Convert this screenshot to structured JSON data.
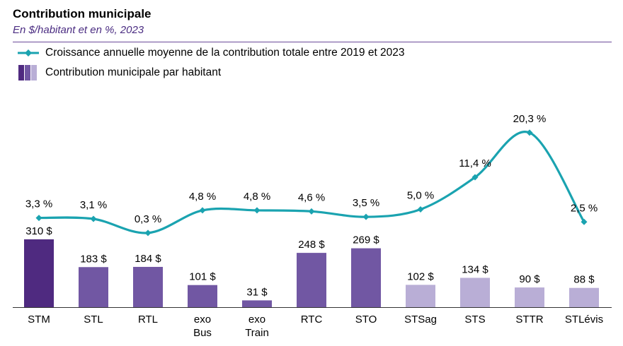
{
  "header": {
    "title": "Contribution municipale",
    "subtitle": "En $/habitant et en %, 2023"
  },
  "legend": {
    "line_label": "Croissance annuelle moyenne de la contribution totale entre 2019 et 2023",
    "bar_label": "Contribution municipale par habitant"
  },
  "colors": {
    "line": "#1aa3b0",
    "bar_dark": "#4f2a80",
    "bar_medium": "#7157a3",
    "bar_light": "#b9aed6",
    "rule": "#6b4a9a"
  },
  "chart_data": {
    "type": "bar",
    "title": "Contribution municipale",
    "subtitle": "En $/habitant et en %, 2023",
    "categories": [
      [
        "STM"
      ],
      [
        "STL"
      ],
      [
        "RTL"
      ],
      [
        "exo",
        "Bus"
      ],
      [
        "exo",
        "Train"
      ],
      [
        "RTC"
      ],
      [
        "STO"
      ],
      [
        "STSag"
      ],
      [
        "STS"
      ],
      [
        "STTR"
      ],
      [
        "STLévis"
      ]
    ],
    "series": [
      {
        "name": "Contribution municipale par habitant",
        "kind": "bar",
        "values": [
          310,
          183,
          184,
          101,
          31,
          248,
          269,
          102,
          134,
          90,
          88
        ],
        "labels": [
          "310 $",
          "183 $",
          "184 $",
          "101 $",
          "31 $",
          "248 $",
          "269 $",
          "102 $",
          "134 $",
          "90 $",
          "88 $"
        ],
        "shades": [
          "dark",
          "medium",
          "medium",
          "medium",
          "medium",
          "medium",
          "medium",
          "light",
          "light",
          "light",
          "light"
        ]
      },
      {
        "name": "Croissance annuelle moyenne de la contribution totale entre 2019 et 2023",
        "kind": "line",
        "values": [
          3.3,
          3.1,
          0.3,
          4.8,
          4.8,
          4.6,
          3.5,
          5.0,
          11.4,
          20.3,
          2.5
        ],
        "labels": [
          "3,3 %",
          "3,1 %",
          "0,3 %",
          "4,8 %",
          "4,8 %",
          "4,6 %",
          "3,5 %",
          "5,0 %",
          "11,4 %",
          "20,3 %",
          "2,5 %"
        ]
      }
    ],
    "xlabel": "",
    "ylabel": ""
  }
}
